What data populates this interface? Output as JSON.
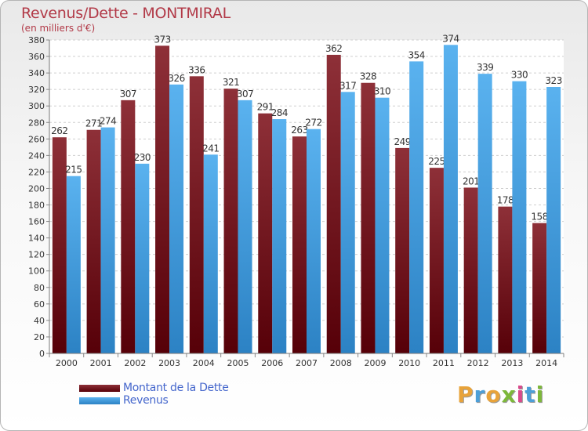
{
  "header": {
    "title": "Revenus/Dette - MONTMIRAL",
    "subtitle": "(en milliers d'€)"
  },
  "chart_data": {
    "type": "bar",
    "categories": [
      "2000",
      "2001",
      "2002",
      "2003",
      "2004",
      "2005",
      "2006",
      "2007",
      "2008",
      "2009",
      "2010",
      "2011",
      "2012",
      "2013",
      "2014"
    ],
    "series": [
      {
        "name": "Montant de la Dette",
        "color": "#7a1f28",
        "values": [
          262,
          271,
          307,
          373,
          336,
          321,
          291,
          263,
          362,
          328,
          249,
          225,
          201,
          178,
          158
        ]
      },
      {
        "name": "Revenus",
        "color": "#4aa3e6",
        "values": [
          215,
          274,
          230,
          326,
          241,
          307,
          284,
          272,
          317,
          310,
          354,
          374,
          339,
          330,
          323
        ]
      }
    ],
    "value_labels": [
      [
        "262",
        "271",
        "307",
        "373",
        "336",
        "321",
        "291",
        "263",
        "362",
        "328",
        "249",
        "225",
        "201",
        "178",
        "158"
      ],
      [
        "215",
        "274",
        "230",
        "326",
        "241",
        "307",
        "284",
        "272",
        "317",
        "310",
        "354",
        "374",
        "339",
        "330",
        "323"
      ]
    ],
    "ylim": [
      0,
      380
    ],
    "yticks": [
      "0",
      "20",
      "40",
      "60",
      "80",
      "100",
      "120",
      "140",
      "160",
      "180",
      "200",
      "220",
      "240",
      "260",
      "280",
      "300",
      "320",
      "340",
      "360",
      "380"
    ],
    "grid": true,
    "legend_position": "bottom-left"
  },
  "logo": {
    "letters": [
      "P",
      "r",
      "o",
      "x",
      "i",
      "t",
      "i"
    ],
    "colors": [
      "#e8a33a",
      "#4c9fd8",
      "#e8a33a",
      "#7db83a",
      "#d94a8c",
      "#4c9fd8",
      "#7db83a"
    ]
  }
}
